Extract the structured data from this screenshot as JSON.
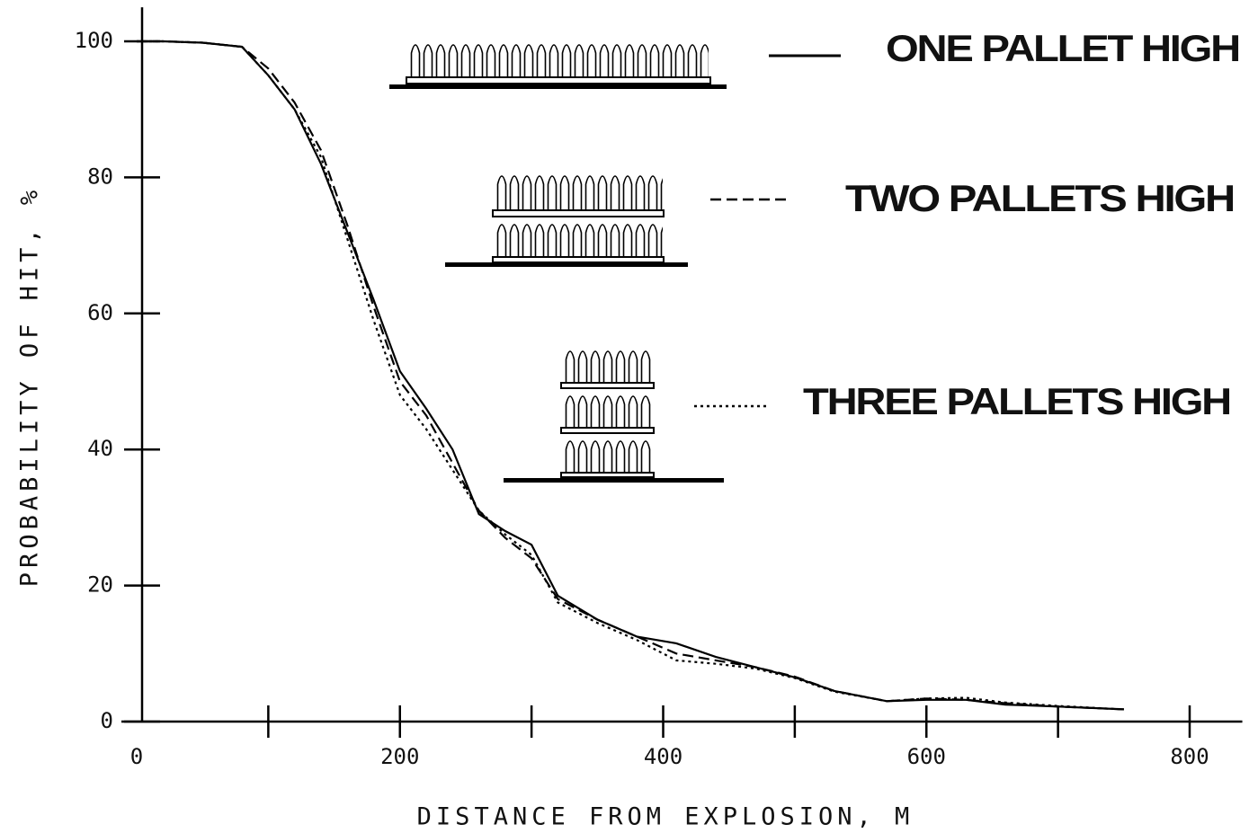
{
  "chart_data": {
    "type": "line",
    "xlabel": "DISTANCE FROM EXPLOSION, M",
    "ylabel": "PROBABILITY OF HIT, %",
    "x": [
      0,
      20,
      50,
      80,
      100,
      120,
      140,
      160,
      180,
      200,
      220,
      240,
      260,
      280,
      300,
      320,
      350,
      380,
      410,
      440,
      470,
      500,
      530,
      570,
      600,
      630,
      660,
      700,
      750
    ],
    "series": [
      {
        "name": "ONE PALLET HIGH",
        "color": "#000000",
        "line_style": "solid",
        "values": [
          100,
          100,
          99.8,
          99.2,
          95,
          90,
          82,
          72,
          62,
          51.5,
          46,
          40,
          30.5,
          28,
          26,
          18.5,
          15,
          12.5,
          11.5,
          9.5,
          8,
          6.5,
          4.5,
          3,
          3.2,
          3.2,
          2.5,
          2.2,
          1.8
        ]
      },
      {
        "name": "TWO PALLETS HIGH",
        "color": "#000000",
        "line_style": "dashed",
        "values": [
          100,
          100,
          99.8,
          99.2,
          96,
          91,
          84,
          73,
          61,
          50,
          45,
          38,
          31,
          27,
          24,
          18,
          15,
          12.5,
          10,
          9,
          8,
          6.6,
          4.5,
          3,
          3.4,
          3.2,
          2.7,
          2.2,
          1.8
        ]
      },
      {
        "name": "THREE PALLETS HIGH",
        "color": "#000000",
        "line_style": "dotted",
        "values": [
          100,
          100,
          99.8,
          99.2,
          95,
          90,
          83,
          71,
          59,
          48,
          43,
          37,
          31,
          27.5,
          24.5,
          17.5,
          14.5,
          12,
          9,
          8.5,
          7.8,
          6.4,
          4.4,
          3,
          3.4,
          3.5,
          2.8,
          2.3,
          1.8
        ]
      }
    ],
    "xlim": [
      0,
      840
    ],
    "ylim": [
      0,
      105
    ],
    "xticks": [
      0,
      200,
      400,
      600,
      800
    ],
    "xticks_minor": [
      100,
      300,
      500,
      700
    ],
    "yticks": [
      0,
      20,
      40,
      60,
      80,
      100
    ],
    "grid": false
  }
}
